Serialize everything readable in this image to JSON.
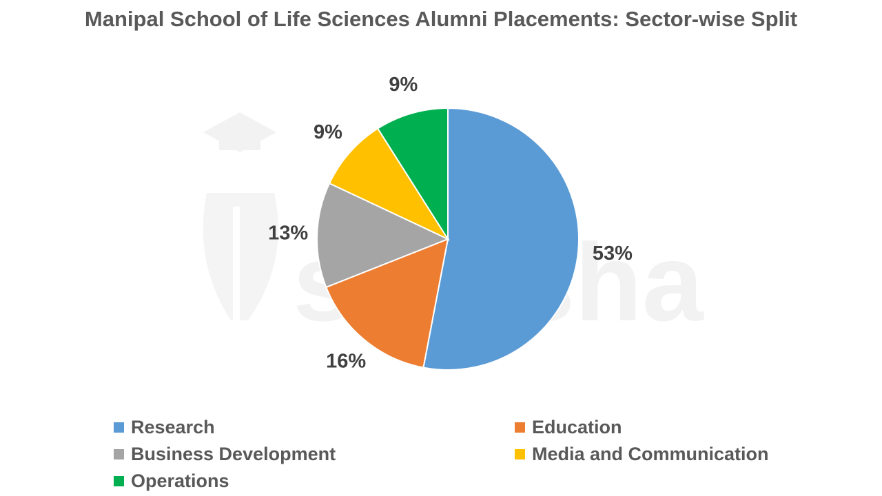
{
  "chart_data": {
    "type": "pie",
    "title": "Manipal School of Life Sciences Alumni Placements: Sector-wise Split",
    "legend_position": "bottom",
    "slices": [
      {
        "name": "Research",
        "value": 53,
        "label": "53%",
        "color": "#5b9bd5"
      },
      {
        "name": "Education",
        "value": 16,
        "label": "16%",
        "color": "#ed7d31"
      },
      {
        "name": "Business Development",
        "value": 13,
        "label": "13%",
        "color": "#a5a5a5"
      },
      {
        "name": "Media and Communication",
        "value": 9,
        "label": "9%",
        "color": "#ffc000"
      },
      {
        "name": "Operations",
        "value": 9,
        "label": "9%",
        "color": "#00b050"
      }
    ]
  },
  "watermark": {
    "text": "shiksha",
    "icon": "graduation-cap-icon"
  }
}
